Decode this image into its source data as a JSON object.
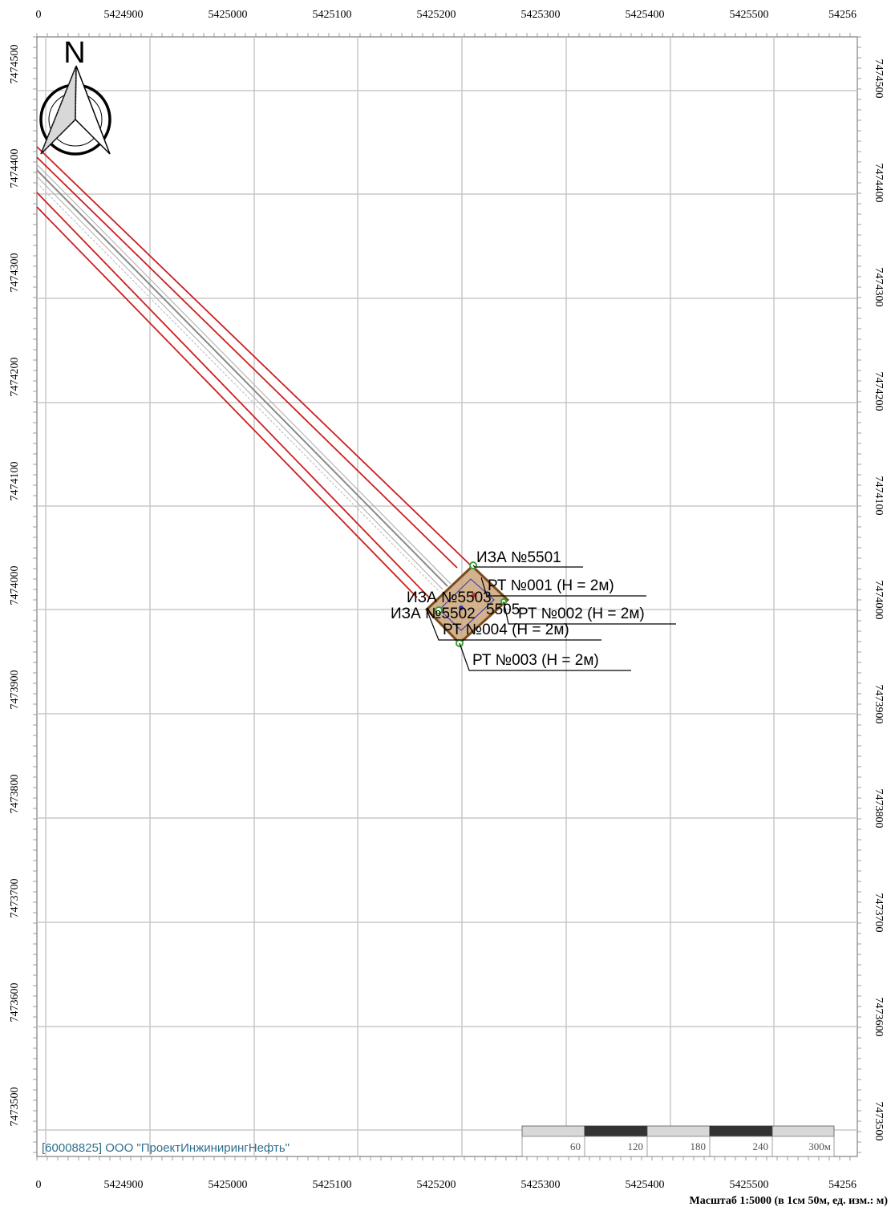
{
  "map": {
    "x_ticks": [
      "5424900",
      "5425000",
      "5425100",
      "5425200",
      "5425300",
      "5425400",
      "5425500"
    ],
    "x_edge_left": "0",
    "x_edge_right": "54256",
    "y_ticks": [
      "7474500",
      "7474400",
      "7474300",
      "7474200",
      "7474100",
      "7474000",
      "7473900",
      "7473800",
      "7473700",
      "7473600",
      "7473500"
    ],
    "north_label": "N",
    "labels": {
      "iza_5501": "ИЗА №5501",
      "rt_001": "РТ №001 (Н = 2м)",
      "rt_002": "РТ №002 (Н = 2м)",
      "rt_003": "РТ №003 (Н = 2м)",
      "rt_004": "РТ №004 (Н = 2м)",
      "iza_overlap_a": "ИЗА №5503",
      "iza_overlap_b": "ИЗА №5502",
      "iza_overlap_c": "5505"
    },
    "colors": {
      "grid": "#c8c8c8",
      "border": "#7f7f7f",
      "zone_line": "#cc1f1f",
      "pipeline": "#9a9a9a",
      "pad_fill": "#c8a070",
      "pad_stroke": "#7a4b1e",
      "marker": "#2faa2f",
      "source": "#3030c0",
      "company_text": "#2e6f8e"
    }
  },
  "scale_bar": {
    "labels": [
      "60",
      "120",
      "180",
      "240",
      "300м"
    ]
  },
  "company": "[60008825] ООО \"ПроектИнжинирингНефть\"",
  "footer": "Масштаб 1:5000 (в 1см 50м, ед. изм.: м)"
}
